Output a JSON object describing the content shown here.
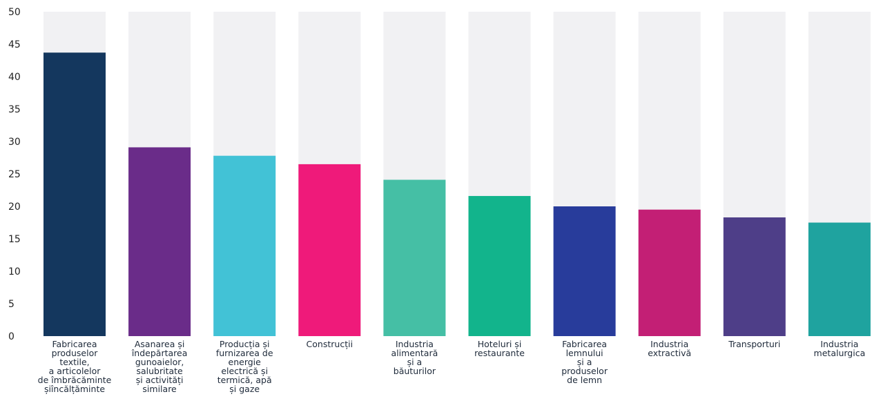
{
  "chart_data": {
    "type": "bar",
    "categories": [
      "Fabricarea\nproduselor\ntextile,\na articolelor\nde îmbrăcăminte\nșiîncălțăminte",
      "Asanarea și\nîndepărtarea\ngunoaielor,\nsalubritate\nși activități\nsimilare",
      "Producția și\nfurnizarea de\nenergie\nelectrică și\ntermică, apă\nși gaze",
      "Construcții",
      "Industria\nalimentară\nși a\nbăuturilor",
      "Hoteluri și\nrestaurante",
      "Fabricarea\nlemnului\nși a\nproduselor\nde lemn",
      "Industria\nextractivă",
      "Transporturi",
      "Industria\nmetalurgica"
    ],
    "values": [
      43.7,
      29.1,
      27.8,
      26.5,
      24.1,
      21.6,
      20.0,
      19.5,
      18.3,
      17.5
    ],
    "colors": [
      "#14375e",
      "#6a2c89",
      "#42c2d6",
      "#ef1a7a",
      "#45bfa5",
      "#12b48c",
      "#283c9b",
      "#c31f75",
      "#4e3e88",
      "#1fa39f"
    ],
    "background_bar_color": "#f1f1f3",
    "ylim": [
      0,
      50
    ],
    "yticks": [
      "0",
      "5",
      "10",
      "15",
      "20",
      "25",
      "30",
      "35",
      "40",
      "45",
      "50"
    ],
    "title": "",
    "xlabel": "",
    "ylabel": "",
    "grid": false,
    "legend": "none"
  }
}
